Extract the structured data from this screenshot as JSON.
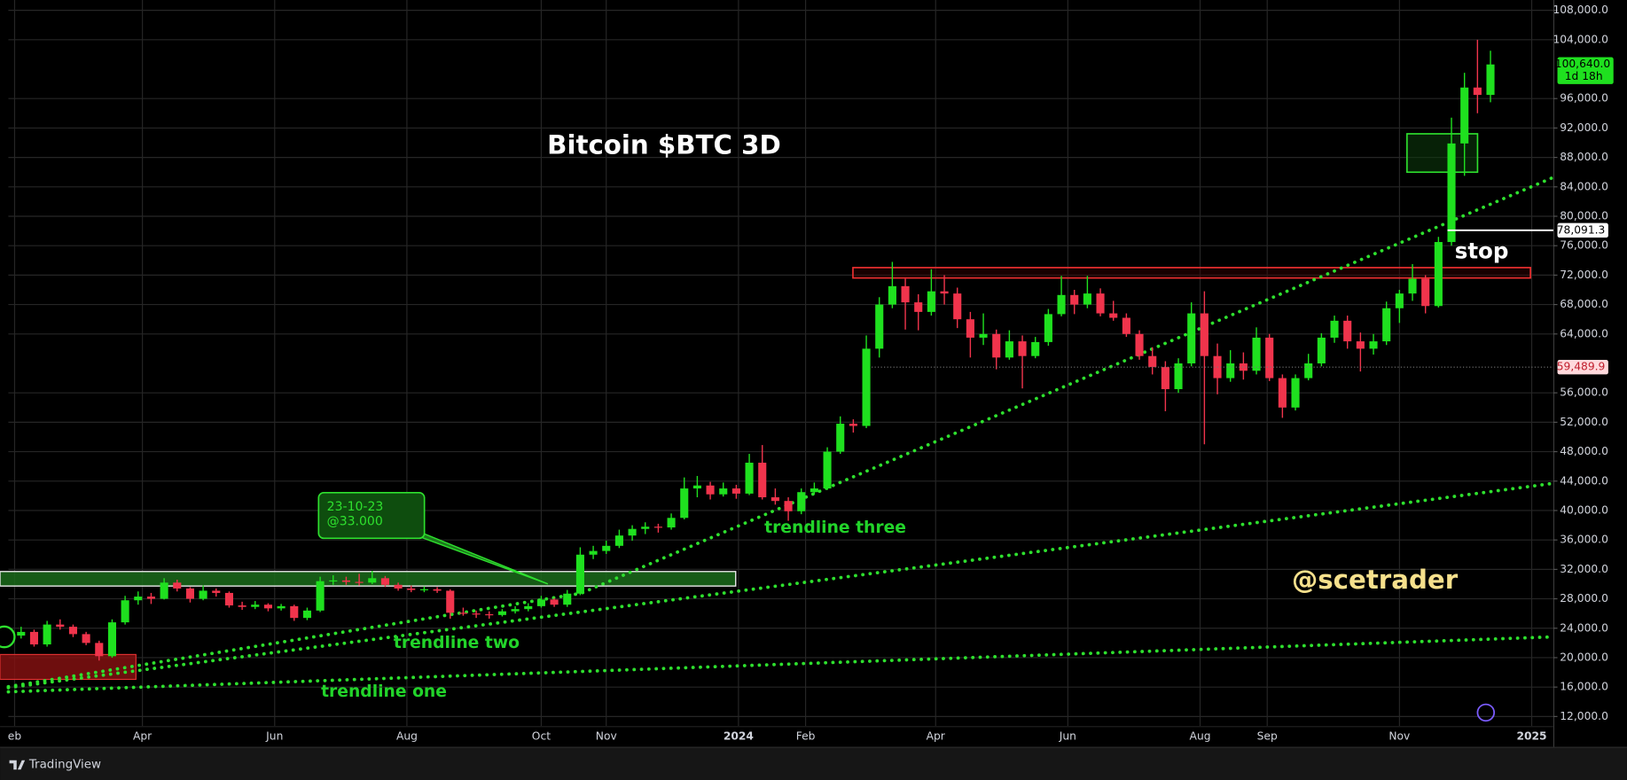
{
  "chart_data": {
    "type": "candlestick",
    "title": "Bitcoin $BTC 3D",
    "up_color": "#1fe01f",
    "down_color": "#f0344c",
    "grid": true,
    "xlim": [
      -0.98,
      117.83
    ],
    "xticks": [
      {
        "value": -0.5,
        "label": "eb"
      },
      {
        "value": 9.33,
        "label": "Apr"
      },
      {
        "value": 19.5,
        "label": "Jun"
      },
      {
        "value": 29.67,
        "label": "Aug"
      },
      {
        "value": 40,
        "label": "Oct"
      },
      {
        "value": 45,
        "label": "Nov"
      },
      {
        "value": 55.17,
        "label": "2024"
      },
      {
        "value": 60.33,
        "label": "Feb"
      },
      {
        "value": 70.33,
        "label": "Apr"
      },
      {
        "value": 80.5,
        "label": "Jun"
      },
      {
        "value": 90.67,
        "label": "Aug"
      },
      {
        "value": 95.83,
        "label": "Sep"
      },
      {
        "value": 106,
        "label": "Nov"
      },
      {
        "value": 116.17,
        "label": "2025"
      }
    ],
    "ylim": [
      10700,
      109400
    ],
    "yticks": [
      {
        "value": 12000,
        "label": "12,000.0"
      },
      {
        "value": 16000,
        "label": "16,000.0"
      },
      {
        "value": 20000,
        "label": "20,000.0"
      },
      {
        "value": 24000,
        "label": "24,000.0"
      },
      {
        "value": 28000,
        "label": "28,000.0"
      },
      {
        "value": 32000,
        "label": "32,000.0"
      },
      {
        "value": 36000,
        "label": "36,000.0"
      },
      {
        "value": 40000,
        "label": "40,000.0"
      },
      {
        "value": 44000,
        "label": "44,000.0"
      },
      {
        "value": 48000,
        "label": "48,000.0"
      },
      {
        "value": 52000,
        "label": "52,000.0"
      },
      {
        "value": 56000,
        "label": "56,000.0"
      },
      {
        "value": 64000,
        "label": "64,000.0"
      },
      {
        "value": 68000,
        "label": "68,000.0"
      },
      {
        "value": 72000,
        "label": "72,000.0"
      },
      {
        "value": 76000,
        "label": "76,000.0"
      },
      {
        "value": 80000,
        "label": "80,000.0"
      },
      {
        "value": 84000,
        "label": "84,000.0"
      },
      {
        "value": 88000,
        "label": "88,000.0"
      },
      {
        "value": 92000,
        "label": "92,000.0"
      },
      {
        "value": 96000,
        "label": "96,000.0"
      },
      {
        "value": 104000,
        "label": "104,000.0"
      },
      {
        "value": 108000,
        "label": "108,000.0"
      }
    ],
    "open": [
      23000,
      23500,
      21800,
      24500,
      24200,
      23200,
      22000,
      20200,
      24800,
      27800,
      28300,
      28000,
      30200,
      29400,
      28000,
      29100,
      28800,
      27100,
      26900,
      27200,
      26700,
      27000,
      25400,
      26400,
      30400,
      30500,
      30300,
      30200,
      30800,
      29900,
      29400,
      29200,
      29300,
      29100,
      26100,
      26000,
      25900,
      25800,
      26300,
      26600,
      27000,
      27900,
      27200,
      28700,
      34000,
      34500,
      35200,
      36600,
      37500,
      37800,
      37700,
      39000,
      43000,
      43400,
      42200,
      43000,
      42300,
      46500,
      41800,
      41300,
      39900,
      42500,
      43000,
      48000,
      51800,
      51500,
      62000,
      68000,
      70500,
      68300,
      67000,
      69800,
      69500,
      66000,
      63500,
      64000,
      60800,
      63000,
      61000,
      62900,
      66700,
      69300,
      68000,
      69500,
      66800,
      66200,
      64000,
      61000,
      59500,
      56500,
      60000,
      66800,
      61000,
      58000,
      60000,
      59000,
      63500,
      58000,
      54000,
      58000,
      60000,
      63500,
      65800,
      63000,
      62000,
      63000,
      67500,
      69500,
      71500,
      67800,
      76500,
      89900,
      97500,
      96500
    ],
    "high": [
      24200,
      23800,
      25000,
      25200,
      24500,
      23500,
      22300,
      25200,
      28400,
      29000,
      28800,
      30800,
      30600,
      29600,
      29800,
      29400,
      29000,
      27600,
      27700,
      27400,
      27300,
      27200,
      26800,
      31000,
      31200,
      31000,
      31400,
      31800,
      31100,
      30200,
      29800,
      29700,
      29600,
      29300,
      26800,
      26400,
      26300,
      26600,
      27000,
      27400,
      28400,
      28100,
      29200,
      35000,
      35200,
      35900,
      37400,
      38000,
      38400,
      38200,
      39600,
      44500,
      44700,
      43900,
      43800,
      43500,
      47700,
      48900,
      43000,
      41800,
      43000,
      43800,
      48600,
      52800,
      52400,
      63800,
      69000,
      73800,
      71500,
      69400,
      72800,
      72000,
      70300,
      67000,
      66800,
      64600,
      64500,
      63800,
      63600,
      67400,
      71900,
      70000,
      71900,
      70200,
      68500,
      66800,
      64500,
      62200,
      60300,
      60700,
      68300,
      69800,
      62700,
      61800,
      61500,
      64900,
      64000,
      58500,
      58500,
      61300,
      64100,
      66500,
      66500,
      64200,
      64000,
      68400,
      70000,
      73500,
      72000,
      77200,
      93400,
      99500,
      104000,
      102500
    ],
    "low": [
      22600,
      21500,
      21500,
      23800,
      22800,
      21700,
      19600,
      20000,
      24500,
      27200,
      27300,
      27900,
      29000,
      27500,
      27800,
      28300,
      26800,
      26500,
      26600,
      26300,
      26400,
      25000,
      25100,
      26200,
      29900,
      29900,
      29800,
      30000,
      29600,
      29100,
      28900,
      28900,
      28800,
      25300,
      25700,
      25400,
      25300,
      25600,
      26000,
      26300,
      26800,
      26900,
      26900,
      28500,
      33400,
      34100,
      34900,
      35900,
      36800,
      37000,
      37400,
      38800,
      41800,
      41500,
      41900,
      41600,
      42100,
      41500,
      40800,
      38600,
      39500,
      42200,
      42800,
      47700,
      50600,
      51200,
      60800,
      67500,
      64600,
      64500,
      66500,
      68000,
      64800,
      60800,
      62500,
      59200,
      60500,
      56600,
      60700,
      62400,
      66400,
      66700,
      67500,
      66400,
      65800,
      63600,
      60500,
      58500,
      53500,
      56000,
      59600,
      49000,
      55800,
      57500,
      57800,
      58500,
      57600,
      52600,
      53600,
      57700,
      59600,
      62800,
      62000,
      58900,
      61200,
      62500,
      65500,
      68500,
      66800,
      67600,
      76000,
      85500,
      94000,
      95500
    ],
    "close": [
      23500,
      21800,
      24500,
      24200,
      23200,
      22000,
      20200,
      24800,
      27800,
      28300,
      28000,
      30200,
      29400,
      28000,
      29100,
      28800,
      27100,
      26900,
      27200,
      26700,
      27000,
      25400,
      26400,
      30400,
      30500,
      30300,
      30200,
      30800,
      29900,
      29400,
      29200,
      29300,
      29100,
      26100,
      26000,
      25900,
      25800,
      26300,
      26600,
      27000,
      27900,
      27200,
      28700,
      34000,
      34500,
      35200,
      36600,
      37500,
      37800,
      37700,
      39000,
      43000,
      43400,
      42200,
      43000,
      42300,
      46500,
      41800,
      41300,
      39900,
      42500,
      43000,
      48000,
      51800,
      51500,
      62000,
      68000,
      70500,
      68300,
      67000,
      69800,
      69500,
      66000,
      63500,
      64000,
      60800,
      63000,
      61000,
      62900,
      66700,
      69300,
      68000,
      69500,
      66800,
      66200,
      64000,
      61000,
      59500,
      56500,
      60000,
      66800,
      61000,
      58000,
      60000,
      59000,
      63500,
      58000,
      54000,
      58000,
      60000,
      63500,
      65800,
      63000,
      62000,
      63000,
      67500,
      69500,
      71500,
      67800,
      76500,
      89900,
      97500,
      96500,
      100640
    ],
    "last_price": {
      "value": 100640,
      "label": "100,640.0",
      "countdown": "1d 18h"
    },
    "price_lines": [
      {
        "value": 78091.3,
        "label": "78,091.3"
      },
      {
        "value": 59489.9,
        "label": "59,489.9"
      }
    ],
    "annotations": [
      "@scetrader",
      "stop",
      "trendline one",
      "trendline two",
      "trendline three"
    ],
    "callout": {
      "date": "23-10-23",
      "price": "@33.000"
    }
  },
  "footer": {
    "brand": "TradingView"
  }
}
